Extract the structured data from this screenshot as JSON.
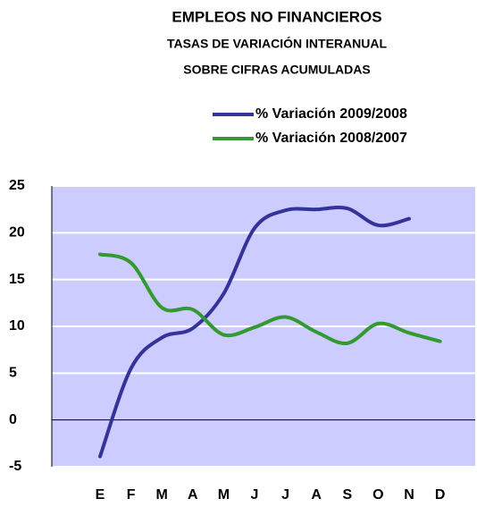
{
  "chart_data": {
    "type": "line",
    "title": "EMPLEOS NO FINANCIEROS",
    "subtitle": [
      "TASAS DE VARIACIÓN INTERANUAL",
      "SOBRE CIFRAS ACUMULADAS"
    ],
    "categories": [
      "E",
      "F",
      "M",
      "A",
      "M",
      "J",
      "J",
      "A",
      "S",
      "O",
      "N",
      "D"
    ],
    "series": [
      {
        "name": "% Variación 2009/2008",
        "color": "#333399",
        "values": [
          -3.9,
          5.5,
          8.8,
          9.8,
          13.5,
          20.5,
          22.4,
          22.5,
          22.6,
          20.8,
          21.5,
          null
        ]
      },
      {
        "name": "% Variación 2008/2007",
        "color": "#339933",
        "values": [
          17.7,
          16.8,
          12.0,
          11.8,
          9.1,
          9.9,
          11.0,
          9.4,
          8.2,
          10.3,
          9.3,
          8.4
        ]
      }
    ],
    "ylim": [
      -5,
      25
    ],
    "yticks": [
      -5,
      0,
      5,
      10,
      15,
      20,
      25
    ],
    "grid": true,
    "legend": "top-right",
    "smooth": true
  }
}
